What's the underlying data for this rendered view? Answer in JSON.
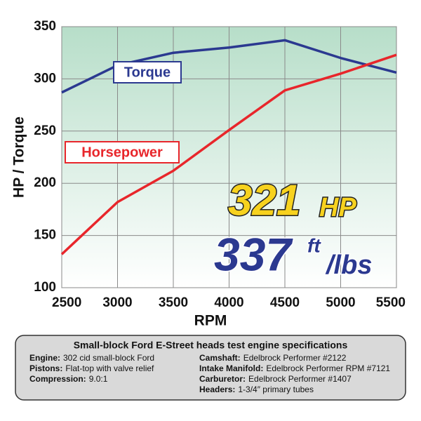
{
  "chart_data": {
    "type": "line",
    "x_label": "RPM",
    "y_label": "HP / Torque",
    "x": [
      2500,
      3000,
      3500,
      4000,
      4500,
      5000,
      5500
    ],
    "series": [
      {
        "name": "Torque",
        "color": "#2b3990",
        "values": [
          287,
          313,
          325,
          330,
          337,
          320,
          306
        ]
      },
      {
        "name": "Horsepower",
        "color": "#e8262b",
        "values": [
          132,
          182,
          212,
          251,
          289,
          305,
          323
        ]
      }
    ],
    "xlim": [
      2500,
      5500
    ],
    "xticks": [
      2500,
      3000,
      3500,
      4000,
      4500,
      5000,
      5500
    ],
    "ylim": [
      100,
      350
    ],
    "yticks": [
      100,
      150,
      200,
      250,
      300,
      350
    ],
    "grid": true,
    "annotations": {
      "hp_number": "321",
      "hp_unit": "HP",
      "torque_number": "337",
      "torque_unit_top": "ft",
      "torque_unit_bottom": "/lbs"
    }
  },
  "specs": {
    "title": "Small-block Ford E-Street heads test engine specifications",
    "left": [
      {
        "label": "Engine:",
        "value": "302 cid small-block Ford"
      },
      {
        "label": "Pistons:",
        "value": "Flat-top with valve relief"
      },
      {
        "label": "Compression:",
        "value": "9.0:1"
      }
    ],
    "right": [
      {
        "label": "Camshaft:",
        "value": "Edelbrock Performer #2122"
      },
      {
        "label": "Intake Manifold:",
        "value": "Edelbrock Performer RPM #7121"
      },
      {
        "label": "Carburetor:",
        "value": "Edelbrock Performer #1407"
      },
      {
        "label": "Headers:",
        "value": "1-3/4″ primary tubes"
      }
    ]
  }
}
